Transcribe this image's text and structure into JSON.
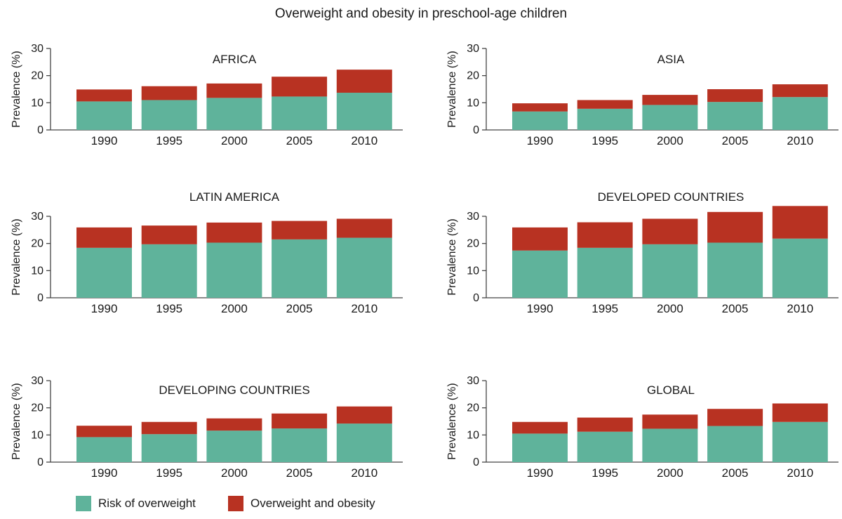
{
  "title": "Overweight and obesity in preschool-age children",
  "colors": {
    "risk": "#5fb39b",
    "obese": "#b83222",
    "axis": "#444444"
  },
  "legend": [
    {
      "label": "Risk of overweight",
      "color": "#5fb39b"
    },
    {
      "label": "Overweight and obesity",
      "color": "#b83222"
    }
  ],
  "chart_data": [
    {
      "type": "bar",
      "stacked": true,
      "title": "AFRICA",
      "ylabel": "Prevalence (%)",
      "ylim": [
        0,
        30
      ],
      "yticks": [
        0,
        10,
        20,
        30
      ],
      "categories": [
        "1990",
        "1995",
        "2000",
        "2005",
        "2010"
      ],
      "series": [
        {
          "name": "Risk of overweight",
          "values": [
            10.5,
            11,
            11.8,
            12.3,
            13.7
          ]
        },
        {
          "name": "Overweight and obesity",
          "values": [
            4.4,
            5.1,
            5.3,
            7.3,
            8.5
          ]
        }
      ]
    },
    {
      "type": "bar",
      "stacked": true,
      "title": "ASIA",
      "ylabel": "Prevalence (%)",
      "ylim": [
        0,
        30
      ],
      "yticks": [
        0,
        10,
        20,
        30
      ],
      "categories": [
        "1990",
        "1995",
        "2000",
        "2005",
        "2010"
      ],
      "series": [
        {
          "name": "Risk of overweight",
          "values": [
            6.8,
            7.8,
            9.2,
            10.3,
            12.1
          ]
        },
        {
          "name": "Overweight and obesity",
          "values": [
            3.0,
            3.2,
            3.7,
            4.7,
            4.7
          ]
        }
      ]
    },
    {
      "type": "bar",
      "stacked": true,
      "title": "LATIN AMERICA",
      "ylabel": "Prevalence (%)",
      "ylim": [
        0,
        30
      ],
      "yticks": [
        0,
        10,
        20,
        30
      ],
      "categories": [
        "1990",
        "1995",
        "2000",
        "2005",
        "2010"
      ],
      "series": [
        {
          "name": "Risk of overweight",
          "values": [
            18.4,
            19.7,
            20.3,
            21.5,
            22.1
          ]
        },
        {
          "name": "Overweight and obesity",
          "values": [
            7.5,
            6.9,
            7.4,
            6.8,
            7.0
          ]
        }
      ]
    },
    {
      "type": "bar",
      "stacked": true,
      "title": "DEVELOPED COUNTRIES",
      "ylabel": "Prevalence (%)",
      "ylim": [
        0,
        30
      ],
      "yticks": [
        0,
        10,
        20,
        30
      ],
      "categories": [
        "1990",
        "1995",
        "2000",
        "2005",
        "2010"
      ],
      "series": [
        {
          "name": "Risk of overweight",
          "values": [
            17.4,
            18.4,
            19.7,
            20.3,
            21.8
          ]
        },
        {
          "name": "Overweight and obesity",
          "values": [
            8.5,
            9.4,
            9.4,
            11.3,
            12.0
          ]
        }
      ]
    },
    {
      "type": "bar",
      "stacked": true,
      "title": "DEVELOPING COUNTRIES",
      "ylabel": "Prevalence (%)",
      "ylim": [
        0,
        30
      ],
      "yticks": [
        0,
        10,
        20,
        30
      ],
      "categories": [
        "1990",
        "1995",
        "2000",
        "2005",
        "2010"
      ],
      "series": [
        {
          "name": "Risk of overweight",
          "values": [
            9.2,
            10.3,
            11.6,
            12.4,
            14.2
          ]
        },
        {
          "name": "Overweight and obesity",
          "values": [
            4.2,
            4.5,
            4.5,
            5.5,
            6.3
          ]
        }
      ]
    },
    {
      "type": "bar",
      "stacked": true,
      "title": "GLOBAL",
      "ylabel": "Prevalence (%)",
      "ylim": [
        0,
        30
      ],
      "yticks": [
        0,
        10,
        20,
        30
      ],
      "categories": [
        "1990",
        "1995",
        "2000",
        "2005",
        "2010"
      ],
      "series": [
        {
          "name": "Risk of overweight",
          "values": [
            10.5,
            11.2,
            12.3,
            13.3,
            14.8
          ]
        },
        {
          "name": "Overweight and obesity",
          "values": [
            4.3,
            5.2,
            5.2,
            6.3,
            6.8
          ]
        }
      ]
    }
  ]
}
